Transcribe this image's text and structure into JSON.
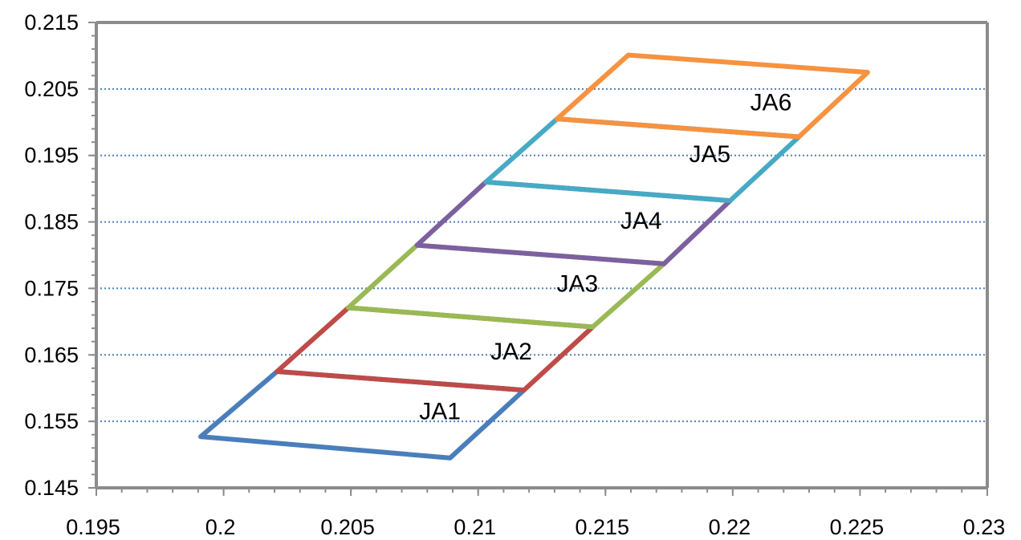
{
  "chart_data": {
    "type": "line",
    "title": "",
    "xlabel": "",
    "ylabel": "",
    "xlim": [
      0.195,
      0.23
    ],
    "ylim": [
      0.145,
      0.215
    ],
    "x_ticks": [
      "0.195",
      "0.2",
      "0.205",
      "0.21",
      "0.215",
      "0.22",
      "0.225",
      "0.23"
    ],
    "y_ticks": [
      "0.215",
      "0.205",
      "0.195",
      "0.185",
      "0.175",
      "0.165",
      "0.155",
      "0.145"
    ],
    "x_tick_values": [
      0.195,
      0.2,
      0.205,
      0.21,
      0.215,
      0.22,
      0.225,
      0.23
    ],
    "y_tick_values": [
      0.215,
      0.205,
      0.195,
      0.185,
      0.175,
      0.165,
      0.155,
      0.145
    ],
    "grid": true,
    "legend": "none",
    "series": [
      {
        "name": "JA1",
        "color": "#4a7ebb",
        "label_at": [
          0.2085,
          0.1565
        ],
        "points": [
          [
            0.1991,
            0.1527
          ],
          [
            0.2089,
            0.1495
          ],
          [
            0.2118,
            0.1597
          ],
          [
            0.2021,
            0.1625
          ],
          [
            0.1991,
            0.1527
          ]
        ]
      },
      {
        "name": "JA2",
        "color": "#be4b48",
        "label_at": [
          0.2113,
          0.1655
        ],
        "points": [
          [
            0.2021,
            0.1625
          ],
          [
            0.2118,
            0.1597
          ],
          [
            0.2145,
            0.1692
          ],
          [
            0.2049,
            0.1721
          ],
          [
            0.2021,
            0.1625
          ]
        ]
      },
      {
        "name": "JA3",
        "color": "#98b954",
        "label_at": [
          0.2139,
          0.1757
        ],
        "points": [
          [
            0.2049,
            0.1721
          ],
          [
            0.2145,
            0.1692
          ],
          [
            0.2173,
            0.1787
          ],
          [
            0.2076,
            0.1815
          ],
          [
            0.2049,
            0.1721
          ]
        ]
      },
      {
        "name": "JA4",
        "color": "#7d60a0",
        "label_at": [
          0.2164,
          0.1852
        ],
        "points": [
          [
            0.2076,
            0.1815
          ],
          [
            0.2173,
            0.1787
          ],
          [
            0.2199,
            0.1882
          ],
          [
            0.2103,
            0.191
          ],
          [
            0.2076,
            0.1815
          ]
        ]
      },
      {
        "name": "JA5",
        "color": "#46aac5",
        "label_at": [
          0.2191,
          0.1952
        ],
        "points": [
          [
            0.2103,
            0.191
          ],
          [
            0.2199,
            0.1882
          ],
          [
            0.2226,
            0.1978
          ],
          [
            0.2131,
            0.2005
          ],
          [
            0.2103,
            0.191
          ]
        ]
      },
      {
        "name": "JA6",
        "color": "#f69240",
        "label_at": [
          0.2215,
          0.203
        ],
        "points": [
          [
            0.2131,
            0.2005
          ],
          [
            0.2226,
            0.1978
          ],
          [
            0.2253,
            0.2075
          ],
          [
            0.2159,
            0.2101
          ],
          [
            0.2131,
            0.2005
          ]
        ]
      }
    ]
  }
}
